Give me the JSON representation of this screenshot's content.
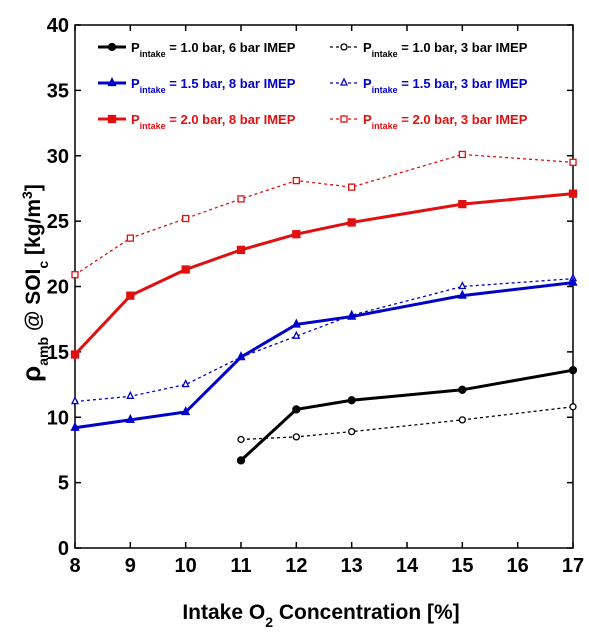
{
  "chart_data": {
    "type": "line",
    "xlabel_parts": {
      "a": "Intake O",
      "sub": "2",
      "b": " Concentration [%]"
    },
    "ylabel_parts": {
      "rho": "ρ",
      "amb": "amb",
      "at": " @ SOI",
      "c": "c",
      "unit": " [kg/m",
      "sup": "3",
      "close": "]"
    },
    "xlim": [
      8,
      17
    ],
    "ylim": [
      0,
      40
    ],
    "xticks": [
      8,
      9,
      10,
      11,
      12,
      13,
      14,
      15,
      16,
      17
    ],
    "yticks": [
      0,
      5,
      10,
      15,
      20,
      25,
      30,
      35,
      40
    ],
    "grid": false,
    "legend_position": "top",
    "series": [
      {
        "legend": {
          "p": "P",
          "sub": "intake",
          "rest": " = 1.0 bar, 6 bar IMEP"
        },
        "color": "#000000",
        "marker": "circle",
        "filled": true,
        "dashed": false,
        "x": [
          11,
          12,
          13,
          15,
          17
        ],
        "y": [
          6.7,
          10.6,
          11.3,
          12.1,
          13.6
        ]
      },
      {
        "legend": {
          "p": "P",
          "sub": "intake",
          "rest": " = 1.5 bar, 8 bar IMEP"
        },
        "color": "#0000c8",
        "marker": "triangle",
        "filled": true,
        "dashed": false,
        "x": [
          8,
          9,
          10,
          11,
          12,
          13,
          15,
          17
        ],
        "y": [
          9.2,
          9.8,
          10.4,
          14.6,
          17.1,
          17.7,
          19.3,
          20.3
        ]
      },
      {
        "legend": {
          "p": "P",
          "sub": "intake",
          "rest": " = 2.0 bar, 8 bar IMEP"
        },
        "color": "#e01010",
        "marker": "square",
        "filled": true,
        "dashed": false,
        "x": [
          8,
          9,
          10,
          11,
          12,
          13,
          15,
          17
        ],
        "y": [
          14.8,
          19.3,
          21.3,
          22.8,
          24.0,
          24.9,
          26.3,
          27.1
        ]
      },
      {
        "legend": {
          "p": "P",
          "sub": "intake",
          "rest": " = 1.0 bar, 3 bar IMEP"
        },
        "color": "#000000",
        "marker": "circle",
        "filled": false,
        "dashed": true,
        "x": [
          11,
          12,
          13,
          15,
          17
        ],
        "y": [
          8.3,
          8.5,
          8.9,
          9.8,
          10.8
        ]
      },
      {
        "legend": {
          "p": "P",
          "sub": "intake",
          "rest": " = 1.5 bar, 3 bar IMEP"
        },
        "color": "#0000c8",
        "marker": "triangle",
        "filled": false,
        "dashed": true,
        "x": [
          8,
          9,
          10,
          11,
          12,
          13,
          15,
          17
        ],
        "y": [
          11.2,
          11.6,
          12.5,
          14.6,
          16.2,
          17.8,
          20.0,
          20.6
        ]
      },
      {
        "legend": {
          "p": "P",
          "sub": "intake",
          "rest": " = 2.0 bar, 3 bar IMEP"
        },
        "color": "#e01010",
        "marker": "square",
        "filled": false,
        "dashed": true,
        "x": [
          8,
          9,
          10,
          11,
          12,
          13,
          15,
          17
        ],
        "y": [
          20.9,
          23.7,
          25.2,
          26.7,
          28.1,
          27.6,
          30.1,
          29.5
        ]
      }
    ]
  }
}
